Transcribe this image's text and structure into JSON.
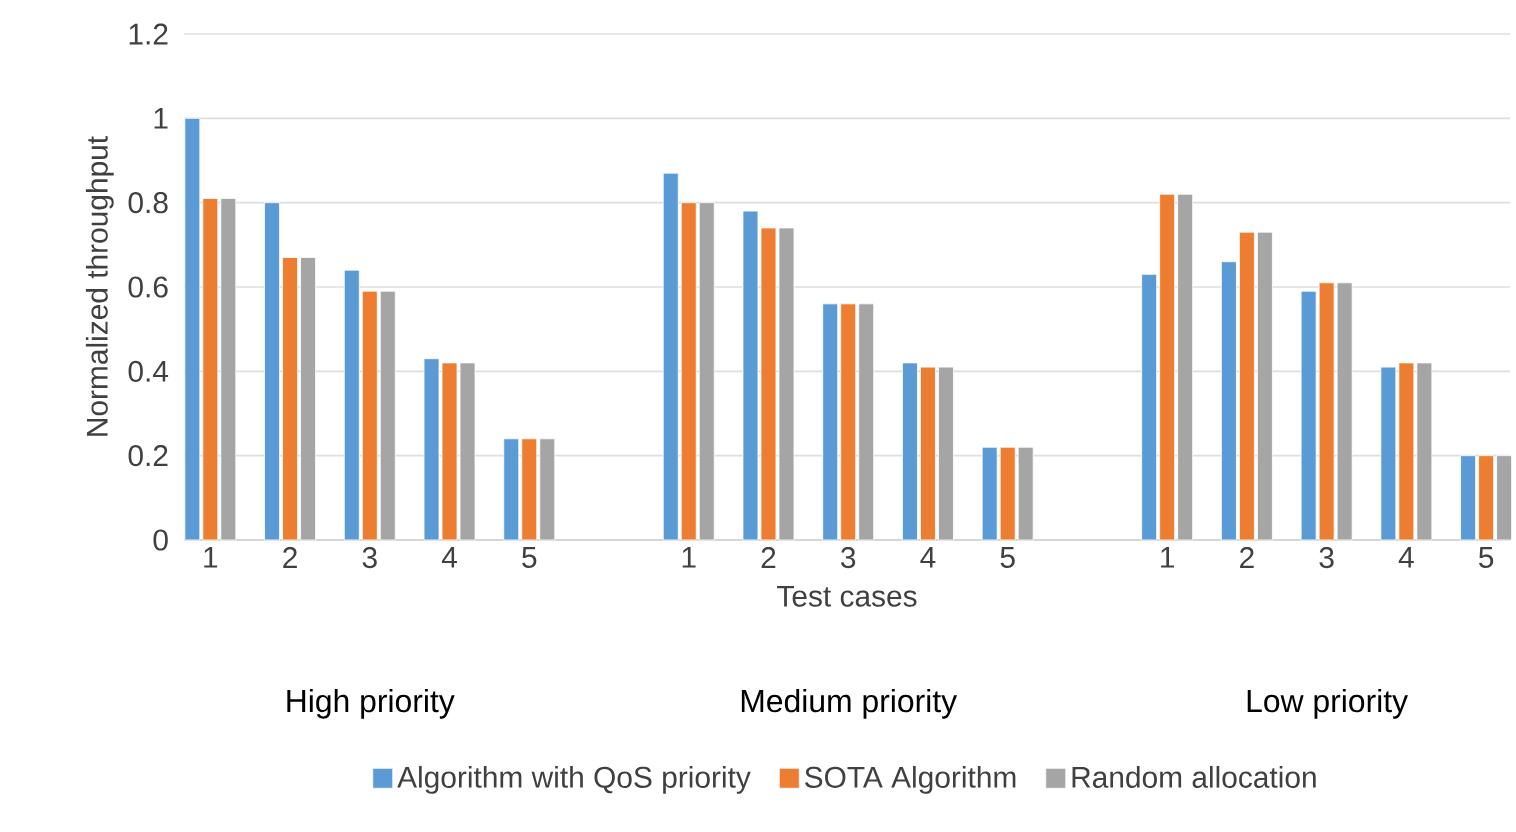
{
  "chart_data": {
    "type": "bar",
    "xlabel": "Test cases",
    "ylabel": "Normalized throughput",
    "categories": [
      "1",
      "2",
      "3",
      "4",
      "5",
      null,
      "1",
      "2",
      "3",
      "4",
      "5",
      null,
      "1",
      "2",
      "3",
      "4",
      "5"
    ],
    "series": [
      {
        "name": "Algorithm with QoS priority",
        "color": "#5b9bd5",
        "values": [
          1.0,
          0.8,
          0.64,
          0.43,
          0.24,
          null,
          0.87,
          0.78,
          0.56,
          0.42,
          0.22,
          null,
          0.63,
          0.66,
          0.59,
          0.41,
          0.2
        ]
      },
      {
        "name": "SOTA Algorithm",
        "color": "#ed7d31",
        "values": [
          0.81,
          0.67,
          0.59,
          0.42,
          0.24,
          null,
          0.8,
          0.74,
          0.56,
          0.41,
          0.22,
          null,
          0.82,
          0.73,
          0.61,
          0.42,
          0.2
        ]
      },
      {
        "name": "Random allocation",
        "color": "#a5a5a5",
        "values": [
          0.81,
          0.67,
          0.59,
          0.42,
          0.24,
          null,
          0.8,
          0.74,
          0.56,
          0.41,
          0.22,
          null,
          0.82,
          0.73,
          0.61,
          0.42,
          0.2
        ]
      }
    ],
    "annotations": [
      "High priority",
      "Medium priority",
      "Low priority"
    ],
    "ylim": [
      0,
      1.2
    ],
    "yticks": [
      0,
      0.2,
      0.4,
      0.6,
      0.8,
      1,
      1.2
    ],
    "grid": "y",
    "legend": "bottom"
  }
}
